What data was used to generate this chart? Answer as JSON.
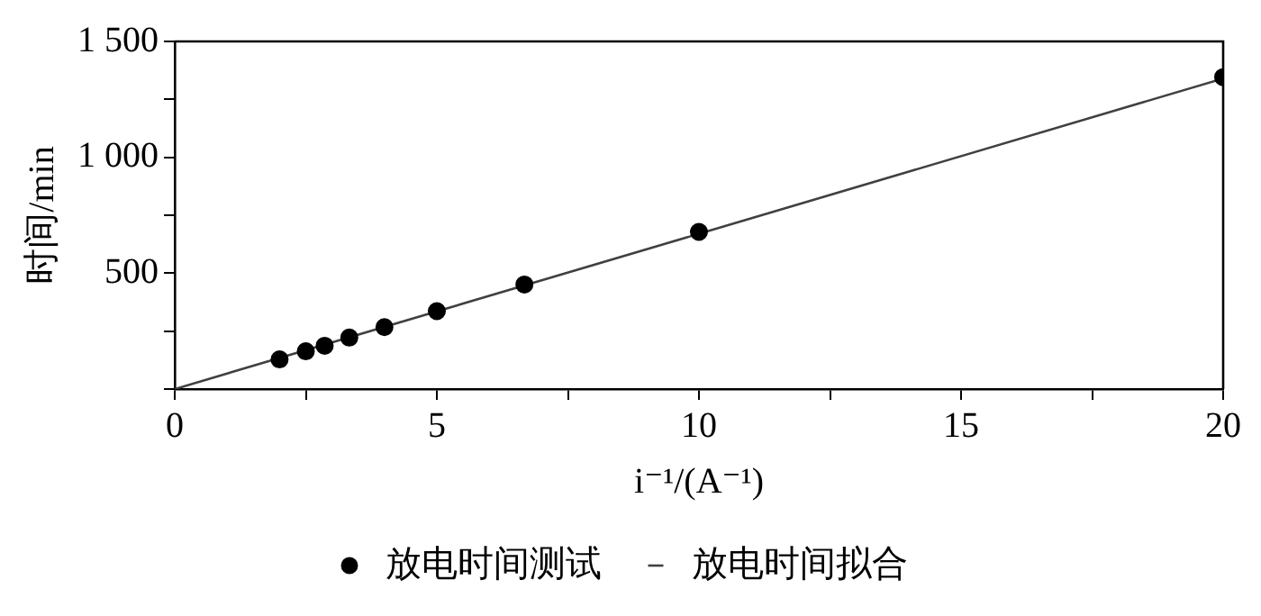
{
  "chart_data": {
    "type": "scatter",
    "xlabel": "i⁻¹/(A⁻¹)",
    "ylabel": "时间/min",
    "xlim": [
      0,
      20
    ],
    "xticks": [
      0,
      {
        "value": 2.5,
        "label": null
      },
      5,
      {
        "value": 7.5,
        "label": null
      },
      10,
      {
        "value": 12.5,
        "label": null
      },
      15,
      {
        "value": 17.5,
        "label": null
      },
      20
    ],
    "ylim": [
      0,
      1500
    ],
    "yticks": [
      {
        "value": 0,
        "label": null
      },
      {
        "value": 250,
        "label": null
      },
      {
        "value": 500,
        "label": "500"
      },
      {
        "value": 750,
        "label": null
      },
      {
        "value": 1000,
        "label": "1 000"
      },
      {
        "value": 1250,
        "label": null
      },
      {
        "value": 1500,
        "label": "1 500"
      }
    ],
    "grid": false,
    "legend": "bottom",
    "marker": "circle",
    "series": [
      {
        "name": "放电时间测试",
        "color": "#000000",
        "x": [
          2,
          2.5,
          2.86,
          3.33,
          4,
          5,
          6.67,
          10,
          20
        ],
        "values": [
          128,
          163,
          187,
          222,
          267,
          336,
          451,
          678,
          1346
        ]
      },
      {
        "name": "放电时间拟合",
        "type": "line",
        "color": "#404040",
        "marker": "none",
        "line_style": "solid",
        "x": [
          0,
          20
        ],
        "values": [
          0,
          1340
        ]
      }
    ]
  }
}
